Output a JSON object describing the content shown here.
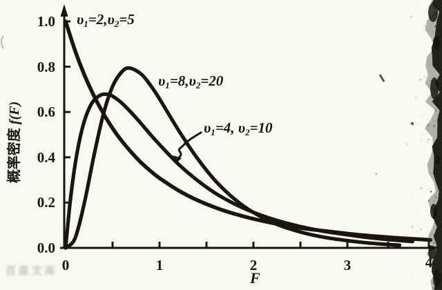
{
  "page": {
    "background": "#f9f8f5",
    "ink": "#18160f"
  },
  "chart_data": {
    "type": "line",
    "xlabel": "F",
    "ylabel": "概率密度 f(F)",
    "xlim": [
      0,
      4
    ],
    "ylim": [
      0,
      1.0
    ],
    "grid": false,
    "legend": "inline annotations on curves",
    "x_tick_values": [
      0,
      1,
      2,
      3,
      4
    ],
    "x_tick_labels": [
      "0",
      "1",
      "2",
      "3",
      "4"
    ],
    "x_minor_tick_values": [
      0.5,
      1.5,
      2.5,
      3.5
    ],
    "y_tick_values": [
      0,
      0.2,
      0.4,
      0.6,
      0.8,
      1.0
    ],
    "y_tick_labels": [
      "0.0",
      "0.2",
      "0.4",
      "0.6",
      "0.8",
      "1.0"
    ],
    "series": [
      {
        "name": "v1=2, v2=5",
        "points": [
          [
            0,
            1.0
          ],
          [
            0.1,
            0.872
          ],
          [
            0.2,
            0.764
          ],
          [
            0.3,
            0.673
          ],
          [
            0.4,
            0.595
          ],
          [
            0.5,
            0.528
          ],
          [
            0.6,
            0.471
          ],
          [
            0.7,
            0.422
          ],
          [
            0.8,
            0.378
          ],
          [
            0.9,
            0.341
          ],
          [
            1.0,
            0.308
          ],
          [
            1.2,
            0.254
          ],
          [
            1.4,
            0.211
          ],
          [
            1.6,
            0.177
          ],
          [
            1.8,
            0.15
          ],
          [
            2.0,
            0.128
          ],
          [
            2.25,
            0.106
          ],
          [
            2.5,
            0.088
          ],
          [
            2.75,
            0.075
          ],
          [
            3.0,
            0.063
          ],
          [
            3.25,
            0.054
          ],
          [
            3.5,
            0.047
          ],
          [
            3.75,
            0.041
          ],
          [
            4.02,
            0.035
          ]
        ]
      },
      {
        "name": "v1=8, v2=20",
        "points": [
          [
            0,
            0
          ],
          [
            0.1,
            0.042
          ],
          [
            0.2,
            0.199
          ],
          [
            0.3,
            0.404
          ],
          [
            0.4,
            0.587
          ],
          [
            0.5,
            0.713
          ],
          [
            0.6,
            0.778
          ],
          [
            0.68,
            0.794
          ],
          [
            0.8,
            0.769
          ],
          [
            0.9,
            0.72
          ],
          [
            1.0,
            0.658
          ],
          [
            1.2,
            0.521
          ],
          [
            1.4,
            0.397
          ],
          [
            1.6,
            0.294
          ],
          [
            1.8,
            0.215
          ],
          [
            2.0,
            0.156
          ],
          [
            2.25,
            0.104
          ],
          [
            2.5,
            0.07
          ],
          [
            2.75,
            0.047
          ],
          [
            3.0,
            0.032
          ],
          [
            3.25,
            0.022
          ],
          [
            3.5,
            0.015
          ],
          [
            3.64,
            0.012
          ]
        ]
      },
      {
        "name": "v1=4, v2=10",
        "points": [
          [
            0,
            0
          ],
          [
            0.05,
            0.209
          ],
          [
            0.1,
            0.365
          ],
          [
            0.15,
            0.479
          ],
          [
            0.2,
            0.56
          ],
          [
            0.25,
            0.616
          ],
          [
            0.3,
            0.651
          ],
          [
            0.38,
            0.676
          ],
          [
            0.45,
            0.678
          ],
          [
            0.5,
            0.67
          ],
          [
            0.6,
            0.639
          ],
          [
            0.7,
            0.597
          ],
          [
            0.8,
            0.551
          ],
          [
            0.9,
            0.502
          ],
          [
            1.0,
            0.456
          ],
          [
            1.2,
            0.37
          ],
          [
            1.4,
            0.299
          ],
          [
            1.6,
            0.24
          ],
          [
            1.8,
            0.194
          ],
          [
            2.0,
            0.157
          ],
          [
            2.25,
            0.121
          ],
          [
            2.5,
            0.094
          ],
          [
            2.75,
            0.073
          ],
          [
            3.0,
            0.058
          ],
          [
            3.25,
            0.046
          ],
          [
            3.5,
            0.037
          ],
          [
            3.8,
            0.028
          ]
        ]
      }
    ]
  },
  "annotations": {
    "ylabel_segments": [
      {
        "t": "概率密度 "
      },
      {
        "t": "f",
        "i": true
      },
      {
        "t": "(",
        "i": true
      },
      {
        "t": "F",
        "i": true
      },
      {
        "t": ")",
        "i": true
      }
    ],
    "xlabel_segments": [
      {
        "t": "F",
        "i": true
      }
    ],
    "curve_labels": [
      {
        "series": "v1=2, v2=5",
        "segments": [
          {
            "t": "υ",
            "i": true
          },
          {
            "t": "1",
            "sub": true
          },
          {
            "t": "=2,"
          },
          {
            "t": "υ",
            "i": true
          },
          {
            "t": "2",
            "sub": true
          },
          {
            "t": "=5"
          }
        ]
      },
      {
        "series": "v1=8, v2=20",
        "segments": [
          {
            "t": "υ",
            "i": true
          },
          {
            "t": "1",
            "sub": true
          },
          {
            "t": "=8,"
          },
          {
            "t": "υ",
            "i": true
          },
          {
            "t": "2",
            "sub": true
          },
          {
            "t": "=20"
          }
        ]
      },
      {
        "series": "v1=4, v2=10",
        "segments": [
          {
            "t": "υ",
            "i": true
          },
          {
            "t": "1",
            "sub": true
          },
          {
            "t": "=4, "
          },
          {
            "t": "υ",
            "i": true
          },
          {
            "t": "2",
            "sub": true
          },
          {
            "t": "=10"
          }
        ]
      }
    ]
  },
  "watermark": {
    "text": "百度文库"
  }
}
